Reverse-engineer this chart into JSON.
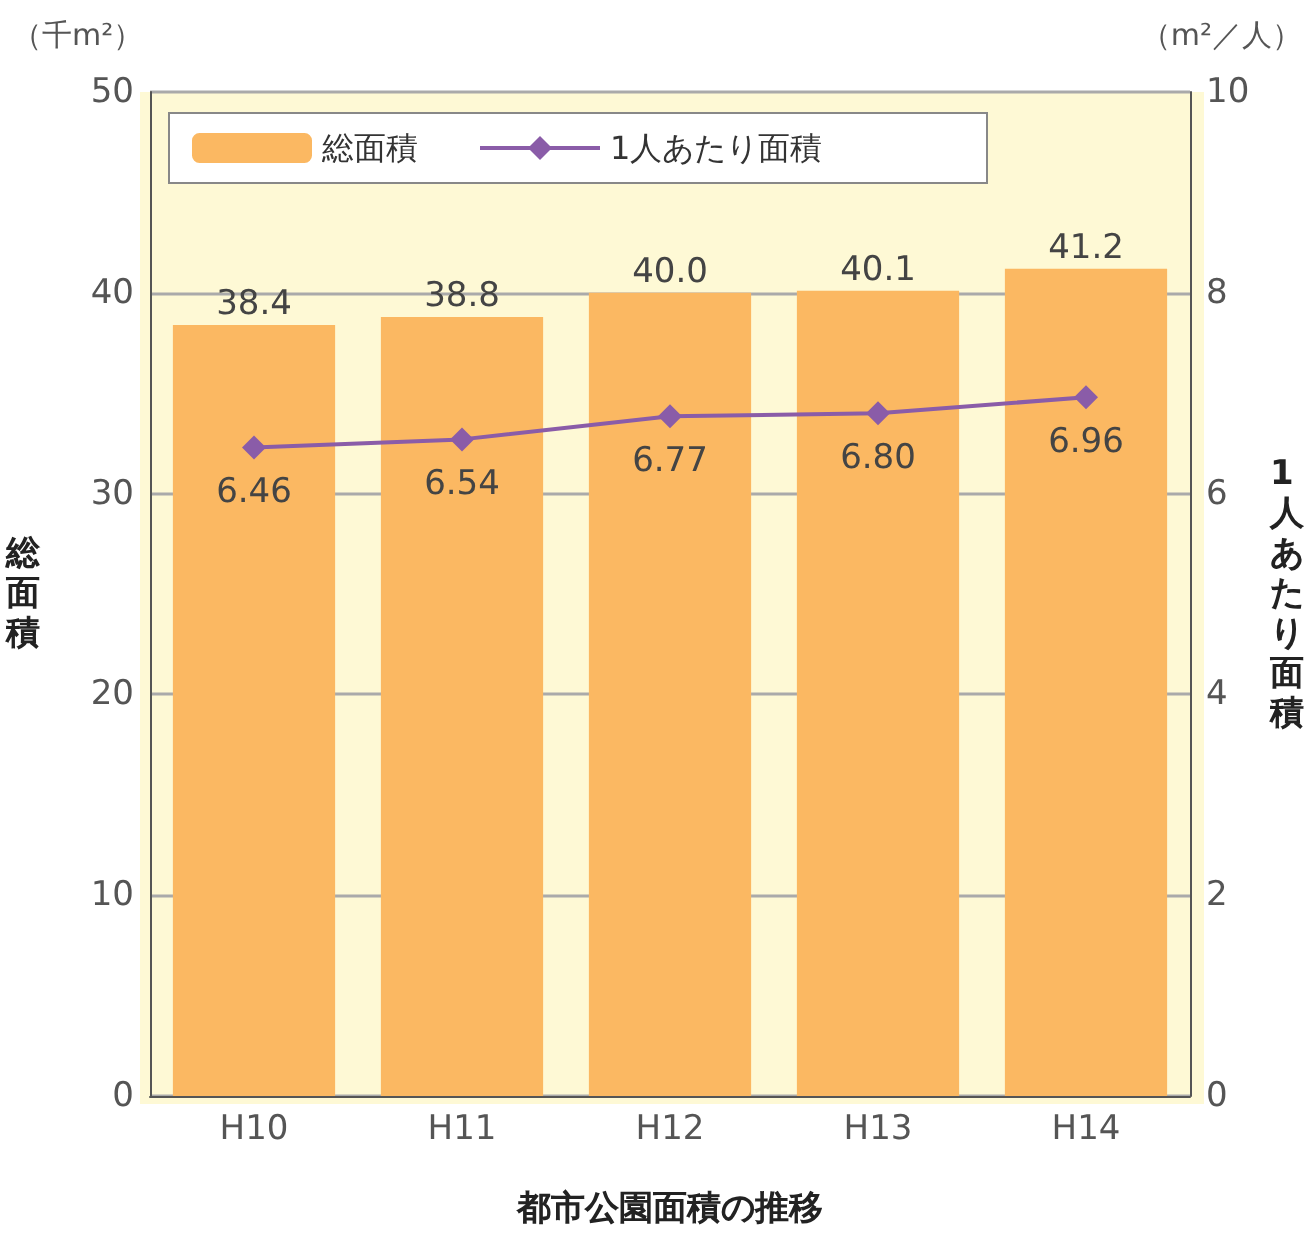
{
  "chart_data": {
    "type": "bar",
    "xlabel": "都市公園面積の推移",
    "ylabel": "総面積",
    "y2label": "1人あたり面積",
    "categories": [
      "H10",
      "H11",
      "H12",
      "H13",
      "H14"
    ],
    "series": [
      {
        "name": "総面積",
        "color": "#fbb862",
        "values": [
          38.4,
          38.8,
          40.0,
          40.1,
          41.2
        ],
        "value_labels": [
          "38.4",
          "38.8",
          "40.0",
          "40.1",
          "41.2"
        ]
      },
      {
        "name": "1人あたり面積",
        "type": "line",
        "axis": "y2",
        "color": "#8a5ca8",
        "marker": "diamond",
        "values": [
          6.46,
          6.54,
          6.77,
          6.8,
          6.96
        ],
        "value_labels": [
          "6.46",
          "6.54",
          "6.77",
          "6.80",
          "6.96"
        ]
      }
    ],
    "ylim": [
      0,
      50
    ],
    "yticks": [
      0,
      10,
      20,
      30,
      40,
      50
    ],
    "y2lim": [
      0,
      10
    ],
    "y2ticks": [
      0,
      2,
      4,
      6,
      8,
      10
    ],
    "annotations": [
      "（千m²）",
      "（m²／人）"
    ],
    "grid": "y",
    "legend": "top left"
  }
}
